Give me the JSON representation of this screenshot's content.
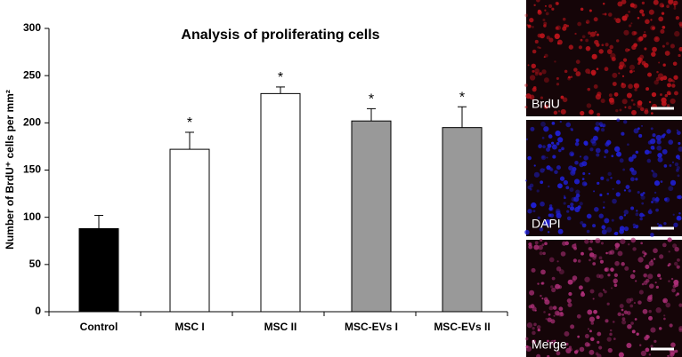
{
  "chart_data": {
    "type": "bar",
    "title": "Analysis of proliferating cells",
    "y_label": "Number of BrdU⁺ cells per mm²",
    "categories": [
      "Control",
      "MSC I",
      "MSC II",
      "MSC-EVs I",
      "MSC-EVs II"
    ],
    "values": [
      88,
      172,
      231,
      202,
      195
    ],
    "errors": [
      14,
      18,
      7,
      13,
      22
    ],
    "colors": [
      "#000000",
      "#ffffff",
      "#ffffff",
      "#999999",
      "#999999"
    ],
    "significance": [
      null,
      "*",
      "*",
      "*",
      "*"
    ],
    "ylim": [
      0,
      300
    ],
    "yticks": [
      0,
      50,
      100,
      150,
      200,
      250,
      300
    ],
    "grid": false
  },
  "panels": [
    {
      "label": "BrdU",
      "color": "#c0141c"
    },
    {
      "label": "DAPI",
      "color": "#2020d8"
    },
    {
      "label": "Merge",
      "color": "#b0307a"
    }
  ]
}
